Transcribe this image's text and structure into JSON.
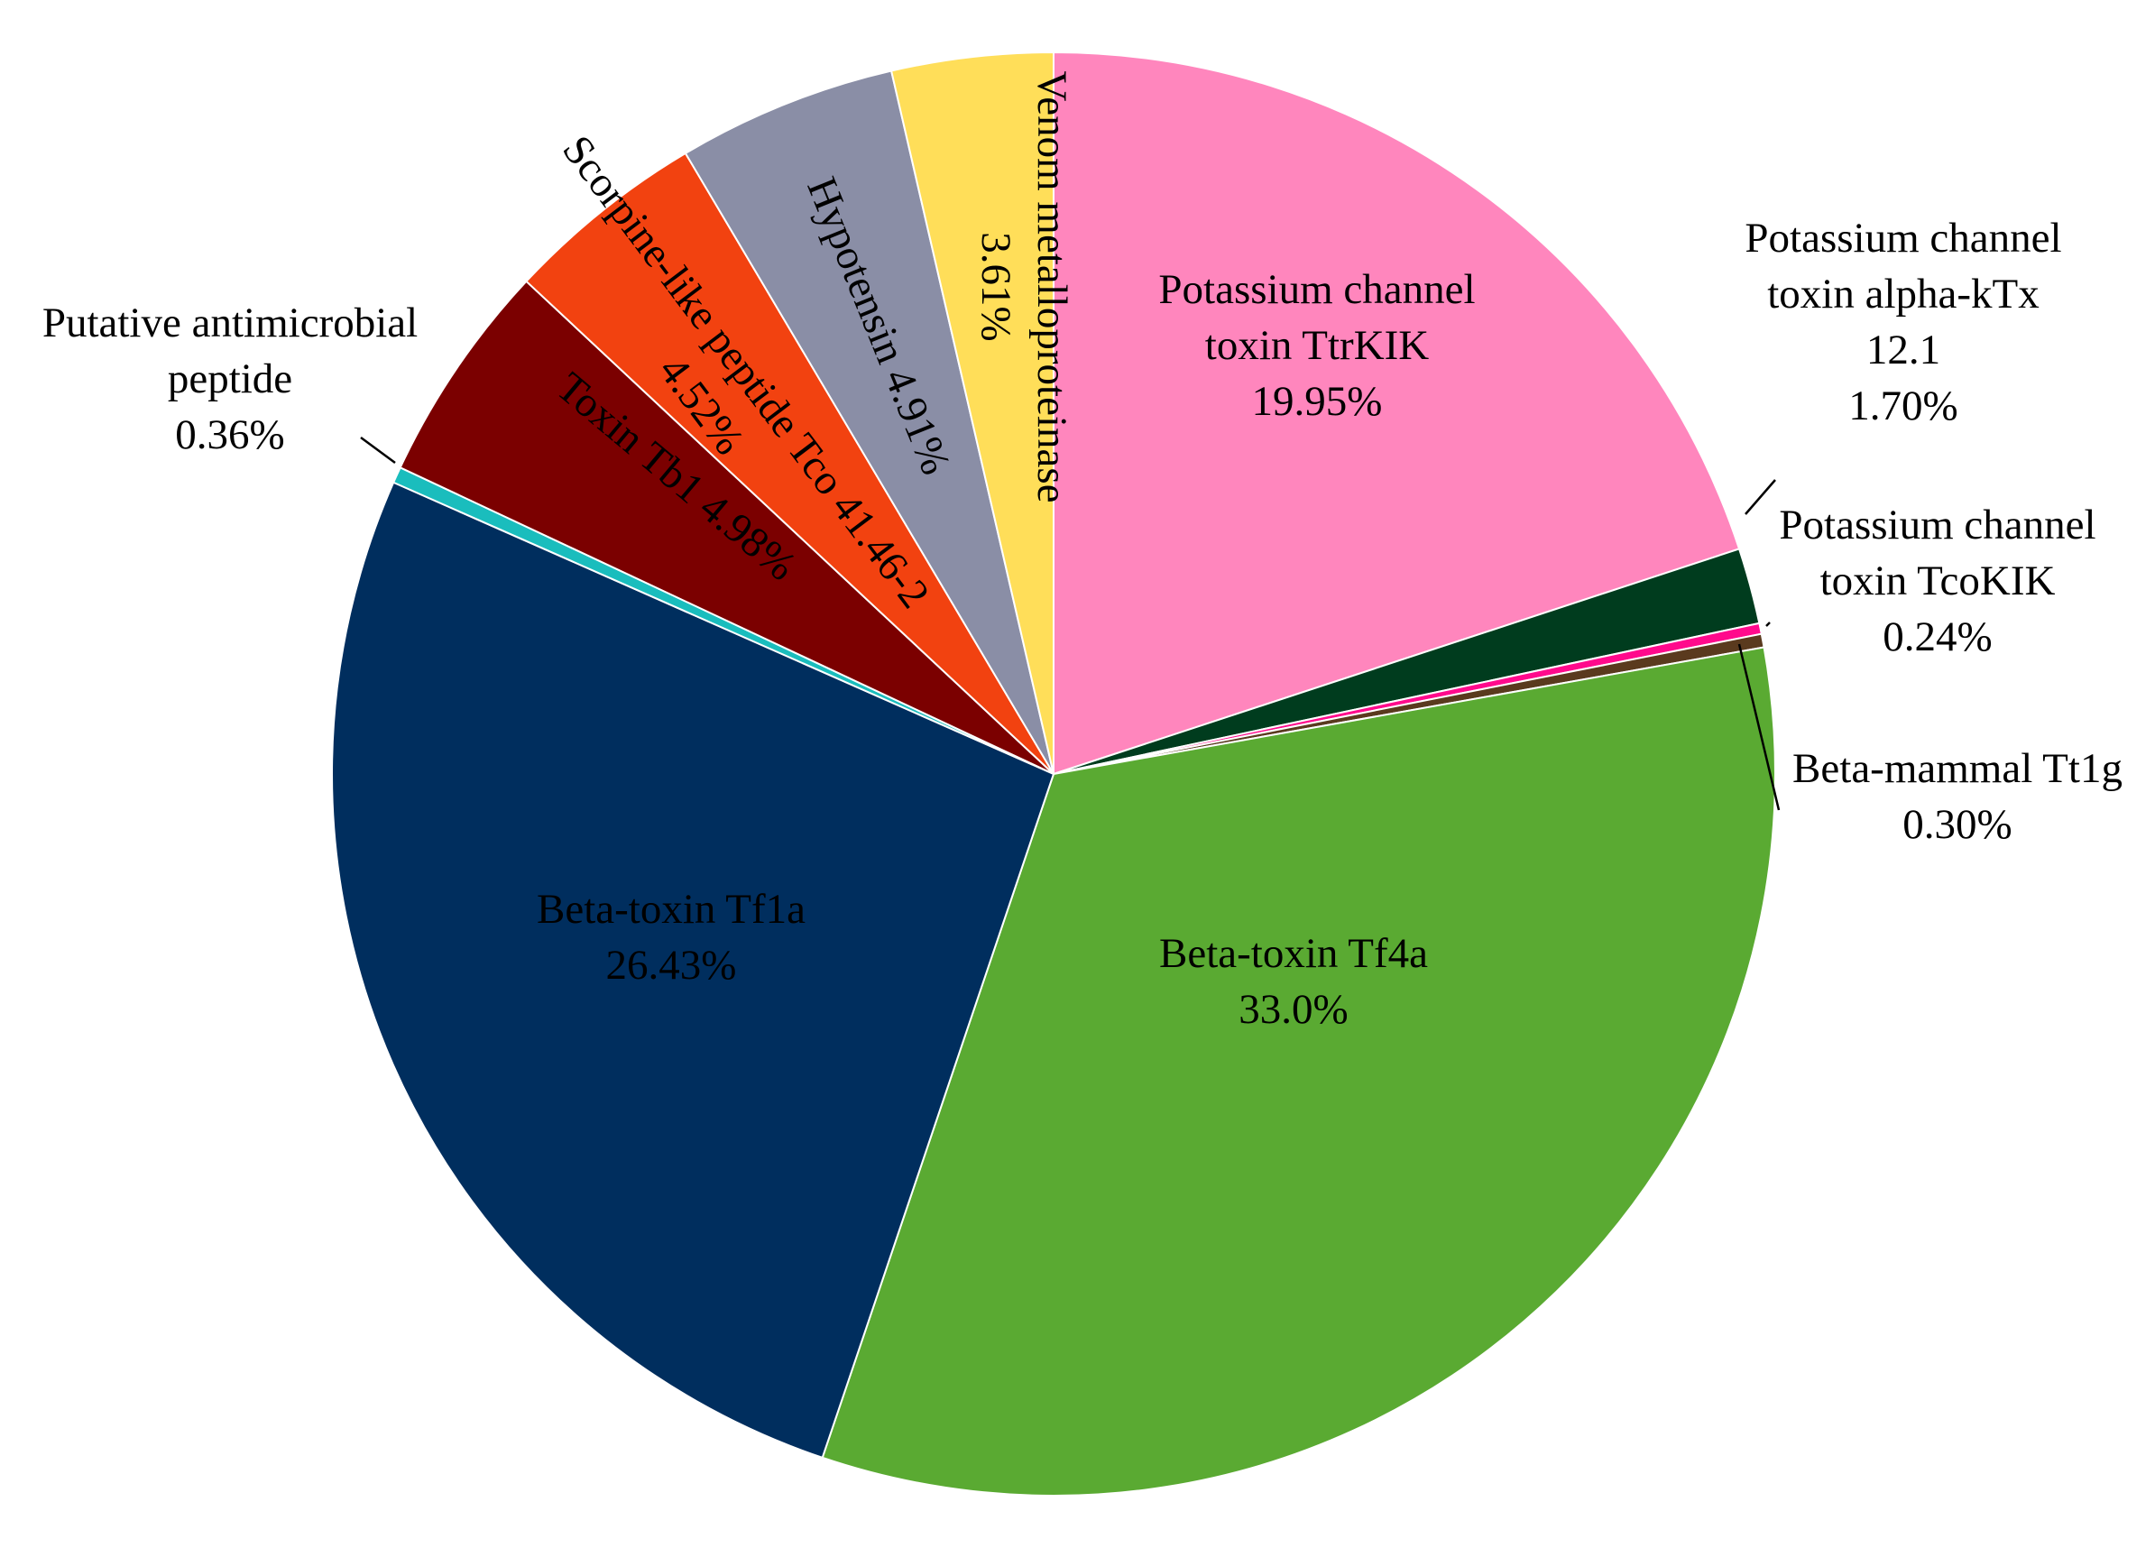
{
  "chart_data": {
    "type": "pie",
    "title": "",
    "start_angle_deg": 0,
    "direction": "clockwise",
    "slices": [
      {
        "name": "Potassium channel toxin TtrKIK",
        "label_lines": [
          "Potassium channel",
          "toxin TtrKIK",
          "19.95%"
        ],
        "value": 19.95,
        "color": "#FF86BD",
        "label_color": "#000000"
      },
      {
        "name": "Potassium channel toxin alpha-kTx 12.1",
        "label_lines": [
          "Potassium channel",
          "toxin alpha-kTx",
          "12.1",
          "1.70%"
        ],
        "value": 1.7,
        "color": "#003C1E",
        "label_color": "#000000"
      },
      {
        "name": "Potassium channel toxin TcoKIK",
        "label_lines": [
          "Potassium channel",
          "toxin TcoKIK",
          "0.24%"
        ],
        "value": 0.24,
        "color": "#FF0A8C",
        "label_color": "#000000"
      },
      {
        "name": "Beta-mammal Tt1g",
        "label_lines": [
          "Beta-mammal Tt1g",
          "0.30%"
        ],
        "value": 0.3,
        "color": "#5A3A1E",
        "label_color": "#000000"
      },
      {
        "name": "Beta-toxin Tf4a",
        "label_lines": [
          "Beta-toxin Tf4a",
          "33.0%"
        ],
        "value": 33.0,
        "color": "#5AAA32",
        "label_color": "#000000"
      },
      {
        "name": "Beta-toxin Tf1a",
        "label_lines": [
          "Beta-toxin Tf1a",
          "26.43%"
        ],
        "value": 26.43,
        "color": "#002E5E",
        "label_color": "#000000"
      },
      {
        "name": "Putative antimicrobial peptide",
        "label_lines": [
          "Putative antimicrobial",
          "peptide",
          "0.36%"
        ],
        "value": 0.36,
        "color": "#1ABDBD",
        "label_color": "#000000"
      },
      {
        "name": "Toxin Tb1",
        "label_lines": [
          "Toxin Tb1 4.98%"
        ],
        "value": 4.98,
        "color": "#7B0000",
        "label_color": "#000000"
      },
      {
        "name": "Scorpine-like peptide Tco 41.46-2",
        "label_lines": [
          "Scorpine-like peptide Tco 41.46-2",
          "4.52%"
        ],
        "value": 4.52,
        "color": "#F24210",
        "label_color": "#000000"
      },
      {
        "name": "Hypotensin",
        "label_lines": [
          "Hypotensin  4.91%"
        ],
        "value": 4.91,
        "color": "#8A8EA6",
        "label_color": "#000000"
      },
      {
        "name": "Venom metalloproteinase",
        "label_lines": [
          "Venom metalloproteinase",
          "3.61%"
        ],
        "value": 3.61,
        "color": "#FFDE59",
        "label_color": "#000000"
      }
    ]
  }
}
